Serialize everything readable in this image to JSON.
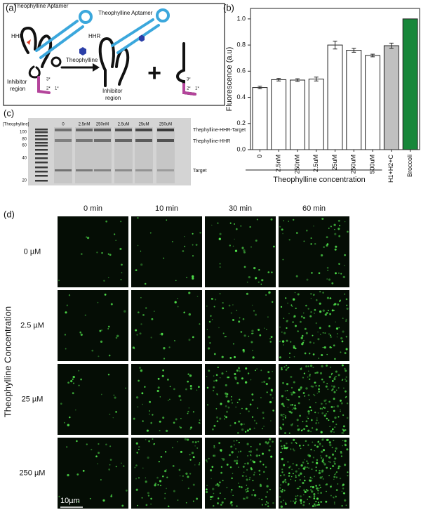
{
  "panel_a": {
    "label": "(a)",
    "aptamer_left": "Theophylline Aptamer",
    "aptamer_right": "Theophylline Aptamer",
    "hhr_left": "HHR",
    "hhr_right": "HHR",
    "ligand": "Theophylline",
    "inhibitor_left": [
      "Inhibitor",
      "region"
    ],
    "inhibitor_right": [
      "Inhibitor",
      "region"
    ],
    "strands_left": [
      "3*",
      "2*",
      "1*"
    ],
    "strands_right": [
      "3*",
      "2*",
      "1*"
    ],
    "plus": "+"
  },
  "panel_b": {
    "label": "(b)"
  },
  "chart_data": {
    "type": "bar",
    "ylabel": "Fluorescence (a.u)",
    "xlabel": "Theophylline concentration",
    "categories": [
      "0",
      "2.5nM",
      "250nM",
      "2.5uM",
      "25uM",
      "250uM",
      "500uM",
      "H1+H2+C",
      "Broccoli"
    ],
    "values": [
      0.475,
      0.535,
      0.532,
      0.54,
      0.8,
      0.76,
      0.72,
      0.795,
      1.0
    ],
    "errors": [
      0.01,
      0.01,
      0.01,
      0.015,
      0.03,
      0.015,
      0.01,
      0.02,
      null
    ],
    "colors": [
      "#ffffff",
      "#ffffff",
      "#ffffff",
      "#ffffff",
      "#ffffff",
      "#ffffff",
      "#ffffff",
      "#c0c0c0",
      "#17873a"
    ],
    "ylim": [
      0,
      1.08
    ],
    "yticks": [
      {
        "value": 0,
        "label": "0.0"
      },
      0.2,
      0.4,
      0.6,
      0.8,
      {
        "value": 1,
        "label": "1.0"
      }
    ]
  },
  "panel_c": {
    "label": "(c)",
    "header": "[Theophylline]",
    "lanes": [
      "0",
      "2.5nM",
      "250nM",
      "2.5uM",
      "25uM",
      "250uM"
    ],
    "ladder": [
      "100",
      "80",
      "60",
      "40",
      "20"
    ],
    "bands": [
      "Thephylline-HHR-Target",
      "Thephylline-HHR",
      "Target"
    ]
  },
  "panel_d": {
    "label": "(d)",
    "times": [
      "0 min",
      "10 min",
      "30 min",
      "60 min"
    ],
    "concentrations": [
      "0 µM",
      "2.5 µM",
      "25 µM",
      "250 µM"
    ],
    "ylabel": "Theophylline Concentration",
    "scale": "10µm"
  }
}
